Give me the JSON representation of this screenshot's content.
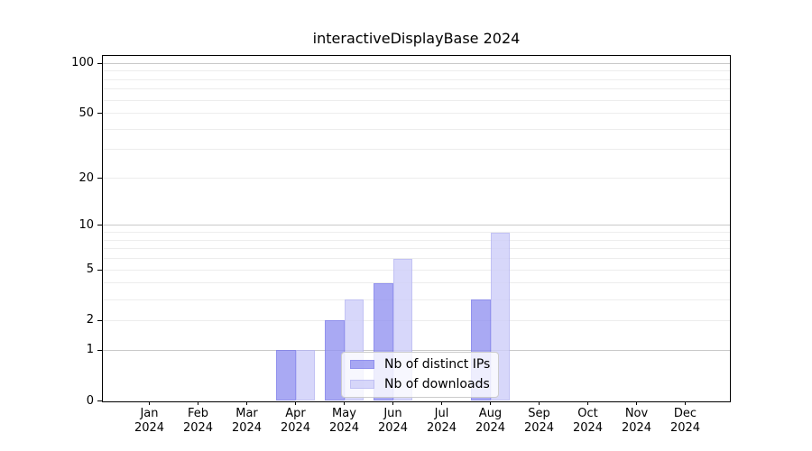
{
  "chart_data": {
    "type": "bar",
    "title": "interactiveDisplayBase 2024",
    "categories": [
      "Jan",
      "Feb",
      "Mar",
      "Apr",
      "May",
      "Jun",
      "Jul",
      "Aug",
      "Sep",
      "Oct",
      "Nov",
      "Dec"
    ],
    "year_label": "2024",
    "series": [
      {
        "name": "Nb of distinct IPs",
        "values": [
          0,
          0,
          0,
          1,
          2,
          4,
          0,
          3,
          0,
          0,
          0,
          0
        ],
        "color": "#9494f1",
        "edge_color": "#7878eb"
      },
      {
        "name": "Nb of downloads",
        "values": [
          0,
          0,
          0,
          1,
          3,
          6,
          0,
          9,
          0,
          0,
          0,
          0
        ],
        "color": "#cecef9",
        "edge_color": "#b4b4f2"
      }
    ],
    "bar_alpha": 0.8,
    "yscale": "log1p",
    "ylim": [
      0,
      112
    ],
    "yticks": [
      0,
      1,
      2,
      5,
      10,
      20,
      50,
      100
    ],
    "grid": {
      "orientation": "horizontal",
      "major_values": [
        1,
        10,
        100
      ],
      "minor_values": [
        2,
        3,
        4,
        5,
        6,
        7,
        8,
        9,
        20,
        30,
        40,
        50,
        60,
        70,
        80,
        90
      ],
      "major_color": "#c9c9c9",
      "minor_color": "#ededed"
    },
    "legend_position": "lower center",
    "axis_color": "#000000",
    "text_color": "#000000",
    "background_color": "#ffffff"
  }
}
